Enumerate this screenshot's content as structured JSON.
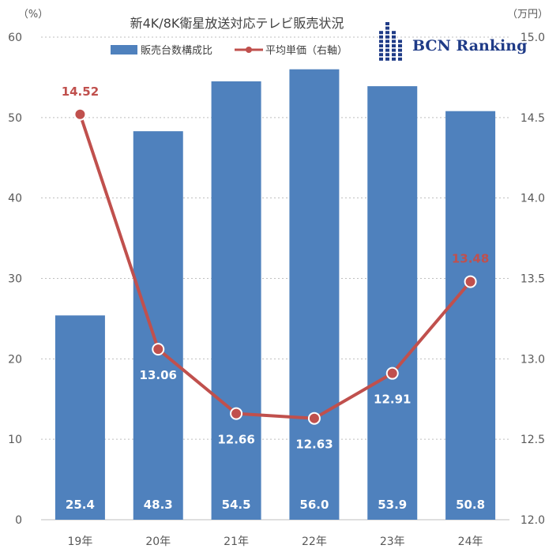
{
  "chart_data": {
    "type": "bar",
    "title": "新4K/8K衛星放送対応テレビ販売状況",
    "categories": [
      "19年",
      "20年",
      "21年",
      "22年",
      "23年",
      "24年"
    ],
    "series": [
      {
        "name": "販売台数構成比",
        "type": "bar",
        "axis": "left",
        "values": [
          25.4,
          48.3,
          54.5,
          56.0,
          53.9,
          50.8
        ],
        "labels": [
          "25.4",
          "48.3",
          "54.5",
          "56.0",
          "53.9",
          "50.8"
        ],
        "color": "#4f81bd"
      },
      {
        "name": "平均単価（右軸）",
        "type": "line",
        "axis": "right",
        "values": [
          14.52,
          13.06,
          12.66,
          12.63,
          12.91,
          13.48
        ],
        "labels": [
          "14.52",
          "13.06",
          "12.66",
          "12.63",
          "12.91",
          "13.48"
        ],
        "color": "#c0504d"
      }
    ],
    "y_left": {
      "unit": "（%）",
      "range": [
        0,
        60
      ],
      "ticks": [
        "0",
        "10",
        "20",
        "30",
        "40",
        "50",
        "60"
      ]
    },
    "y_right": {
      "unit": "（万円）",
      "range": [
        12.0,
        15.0
      ],
      "ticks": [
        "12.0",
        "12.5",
        "13.0",
        "13.5",
        "14.0",
        "14.5",
        "15.0"
      ]
    },
    "grid": true,
    "legend_position": "top"
  },
  "logo": {
    "text": "BCN Ranking",
    "color": "#1f3b87"
  }
}
